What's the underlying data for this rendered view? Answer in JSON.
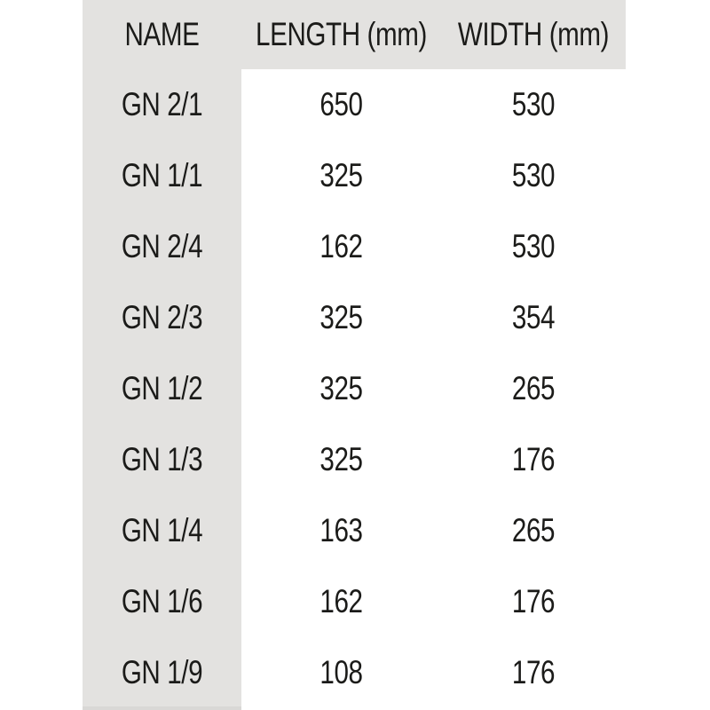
{
  "colors": {
    "page_bg": "#ffffff",
    "header_bg": "#e3e2e0",
    "name_column_bg": "#e3e2e0",
    "text": "#1b1b19"
  },
  "chart_data": {
    "type": "table",
    "title": "",
    "columns": [
      "NAME",
      "LENGTH (mm)",
      "WIDTH (mm)"
    ],
    "rows": [
      [
        "GN 2/1",
        "650",
        "530"
      ],
      [
        "GN 1/1",
        "325",
        "530"
      ],
      [
        "GN 2/4",
        "162",
        "530"
      ],
      [
        "GN 2/3",
        "325",
        "354"
      ],
      [
        "GN 1/2",
        "325",
        "265"
      ],
      [
        "GN 1/3",
        "325",
        "176"
      ],
      [
        "GN 1/4",
        "163",
        "265"
      ],
      [
        "GN 1/6",
        "162",
        "176"
      ],
      [
        "GN 1/9",
        "108",
        "176"
      ]
    ]
  }
}
